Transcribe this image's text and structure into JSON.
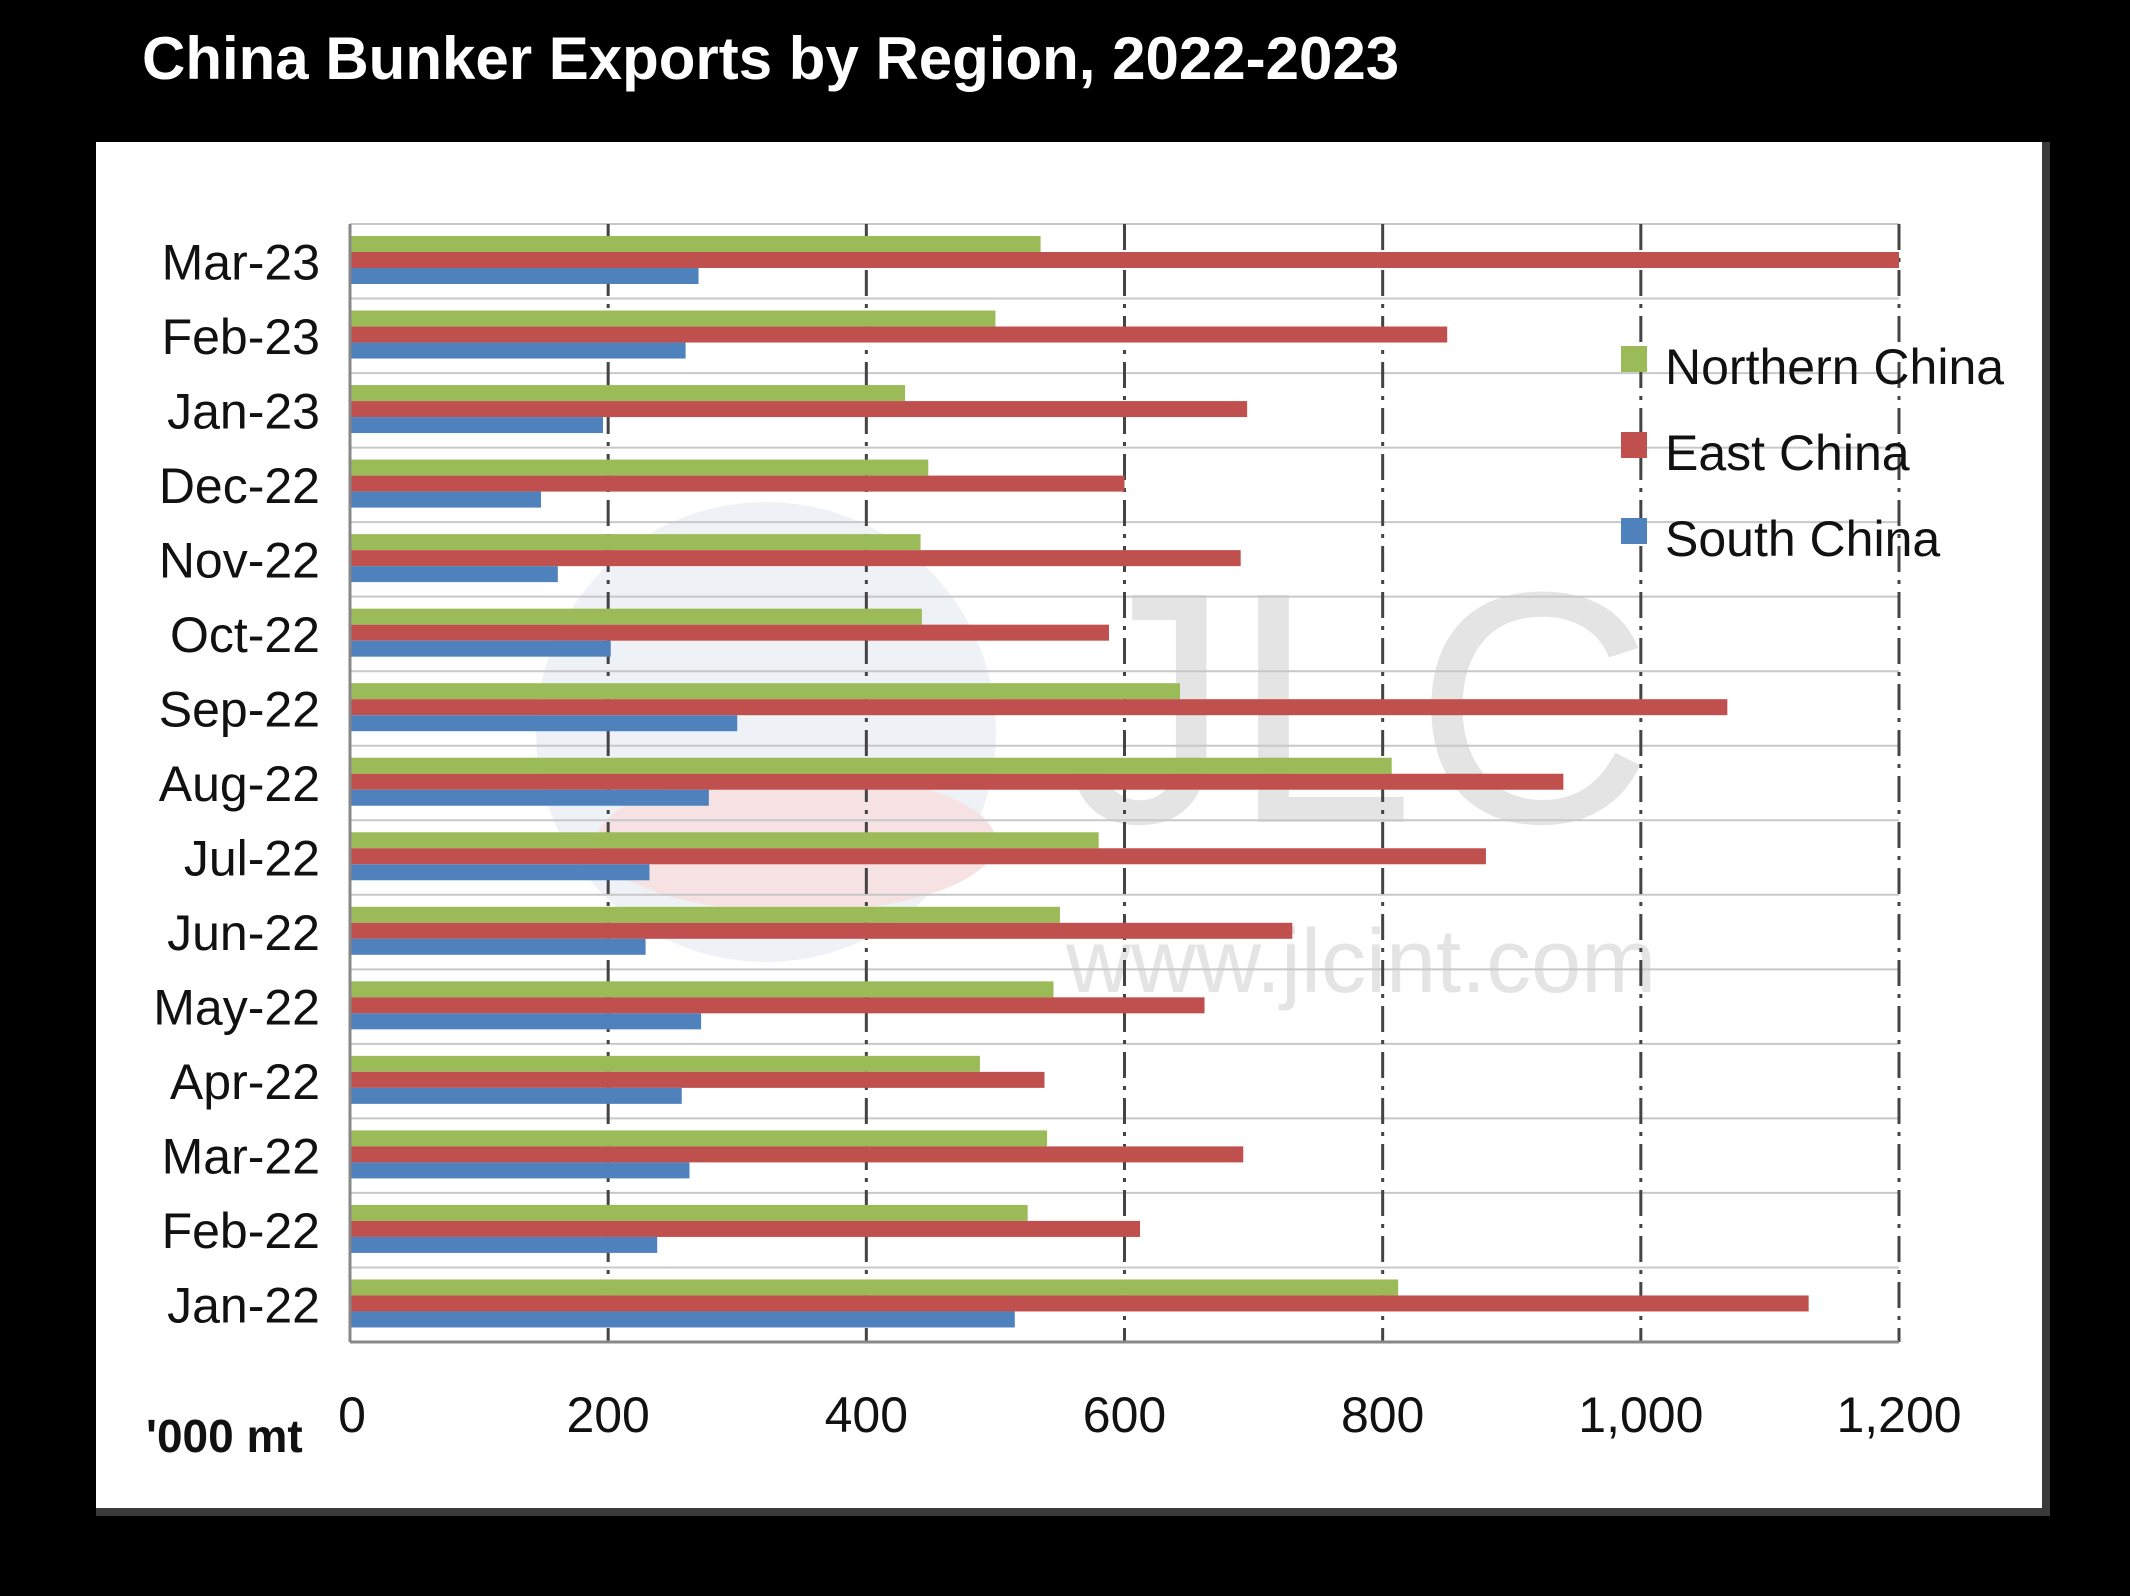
{
  "chart_data": {
    "type": "bar",
    "orientation": "horizontal",
    "title": "China Bunker Exports by Region, 2022-2023",
    "unit_label": "'000 mt",
    "categories": [
      "Mar-23",
      "Feb-23",
      "Jan-23",
      "Dec-22",
      "Nov-22",
      "Oct-22",
      "Sep-22",
      "Aug-22",
      "Jul-22",
      "Jun-22",
      "May-22",
      "Apr-22",
      "Mar-22",
      "Feb-22",
      "Jan-22"
    ],
    "series": [
      {
        "name": "Northern China",
        "color": "#9bbb59",
        "values": [
          535,
          500,
          430,
          448,
          442,
          443,
          643,
          807,
          580,
          550,
          545,
          488,
          540,
          525,
          812
        ]
      },
      {
        "name": "East China",
        "color": "#c0504d",
        "values": [
          1200,
          850,
          695,
          600,
          690,
          588,
          1067,
          940,
          880,
          730,
          662,
          538,
          692,
          612,
          1130
        ]
      },
      {
        "name": "South China",
        "color": "#4f81bd",
        "values": [
          270,
          260,
          196,
          148,
          161,
          202,
          300,
          278,
          232,
          229,
          272,
          257,
          263,
          238,
          515
        ]
      }
    ],
    "xlim": [
      0,
      1200
    ],
    "ticks": [
      "0",
      "200",
      "400",
      "600",
      "800",
      "1,000",
      "1,200"
    ],
    "tick_values": [
      0,
      200,
      400,
      600,
      800,
      1000,
      1200
    ],
    "grid": true,
    "legend_position": "right"
  },
  "watermark": {
    "logo_text": "JLC",
    "url_text": "www.jlcint.com"
  }
}
